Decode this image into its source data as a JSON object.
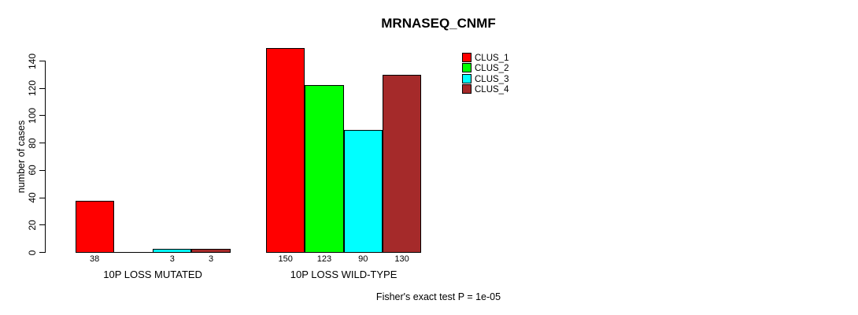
{
  "chart_data": {
    "type": "bar",
    "title": "MRNASEQ_CNMF",
    "ylabel": "number of cases",
    "xlabel": "",
    "ylim": [
      0,
      140
    ],
    "yticks": [
      0,
      20,
      40,
      60,
      80,
      100,
      120,
      140
    ],
    "grid": false,
    "legend_position": "top-right",
    "categories": [
      "10P LOSS MUTATED",
      "10P LOSS WILD-TYPE"
    ],
    "series": [
      {
        "name": "CLUS_1",
        "color": "#ff0000",
        "values": [
          38,
          150
        ]
      },
      {
        "name": "CLUS_2",
        "color": "#00ff00",
        "values": [
          0,
          123
        ]
      },
      {
        "name": "CLUS_3",
        "color": "#00ffff",
        "values": [
          3,
          90
        ]
      },
      {
        "name": "CLUS_4",
        "color": "#a52a2a",
        "values": [
          3,
          130
        ]
      }
    ],
    "bar_value_labels": [
      "38",
      "3",
      "3",
      "150",
      "123",
      "90",
      "130"
    ],
    "footnote": "Fisher's exact test P = 1e-05"
  }
}
